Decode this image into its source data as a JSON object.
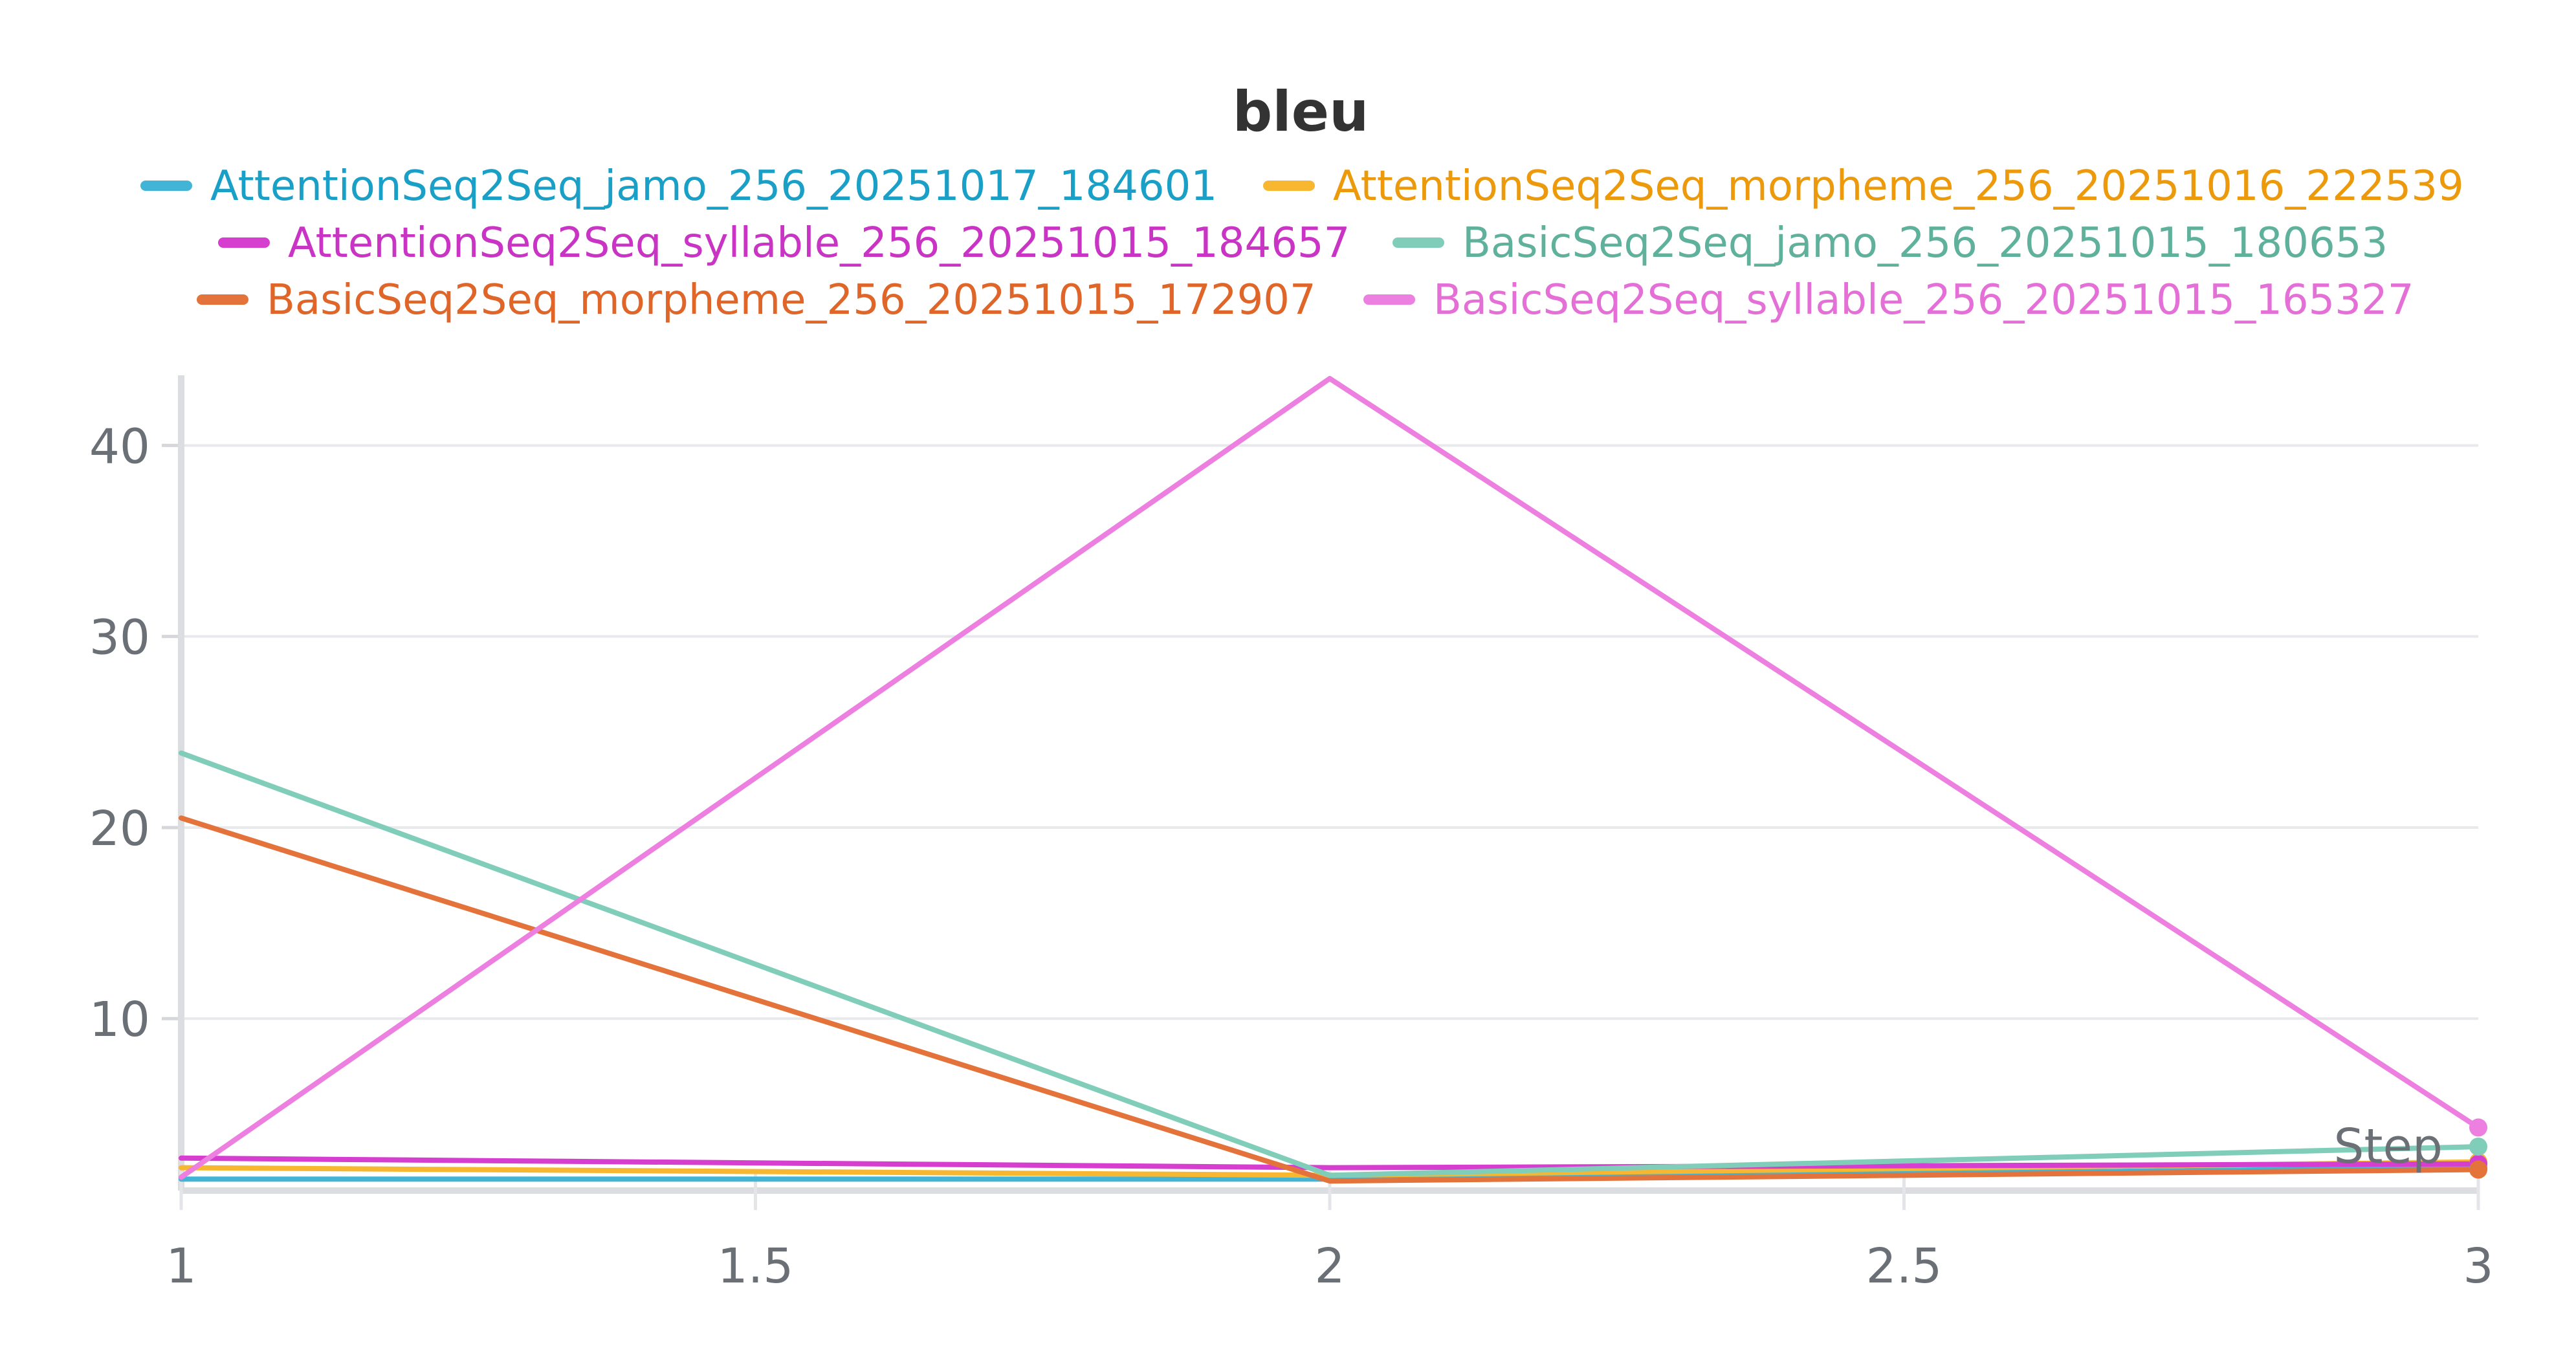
{
  "chart_data": {
    "type": "line",
    "title": "bleu",
    "xlabel": "Step",
    "ylabel": "",
    "xlim": [
      1,
      3
    ],
    "ylim": [
      1,
      43.5
    ],
    "x": [
      1,
      2,
      3
    ],
    "x_ticks": [
      "1",
      "1.5",
      "2",
      "2.5",
      "3"
    ],
    "y_ticks": [
      "10",
      "20",
      "30",
      "40"
    ],
    "grid": true,
    "legend_position": "top",
    "series": [
      {
        "name": "AttentionSeq2Seq_jamo_256_20251017_184601",
        "color": "#42b5d6",
        "values": [
          1.6,
          1.6,
          2.2
        ]
      },
      {
        "name": "AttentionSeq2Seq_morpheme_256_20251016_222539",
        "color": "#f7b731",
        "values": [
          2.2,
          1.8,
          2.5
        ]
      },
      {
        "name": "AttentionSeq2Seq_syllable_256_20251015_184657",
        "color": "#d63ecf",
        "values": [
          2.7,
          2.2,
          2.4
        ]
      },
      {
        "name": "BasicSeq2Seq_jamo_256_20251015_180653",
        "color": "#80cdb9",
        "values": [
          23.9,
          1.8,
          3.3
        ]
      },
      {
        "name": "BasicSeq2Seq_morpheme_256_20251015_172907",
        "color": "#e3733a",
        "values": [
          20.5,
          1.5,
          2.1
        ]
      },
      {
        "name": "BasicSeq2Seq_syllable_256_20251015_165327",
        "color": "#ec7fdf",
        "values": [
          1.7,
          43.5,
          4.3
        ]
      }
    ],
    "legend_text_colors": [
      "#1a9fc7",
      "#ec9a0c",
      "#c934c4",
      "#5fb19c",
      "#df6528",
      "#e46fd6"
    ]
  }
}
